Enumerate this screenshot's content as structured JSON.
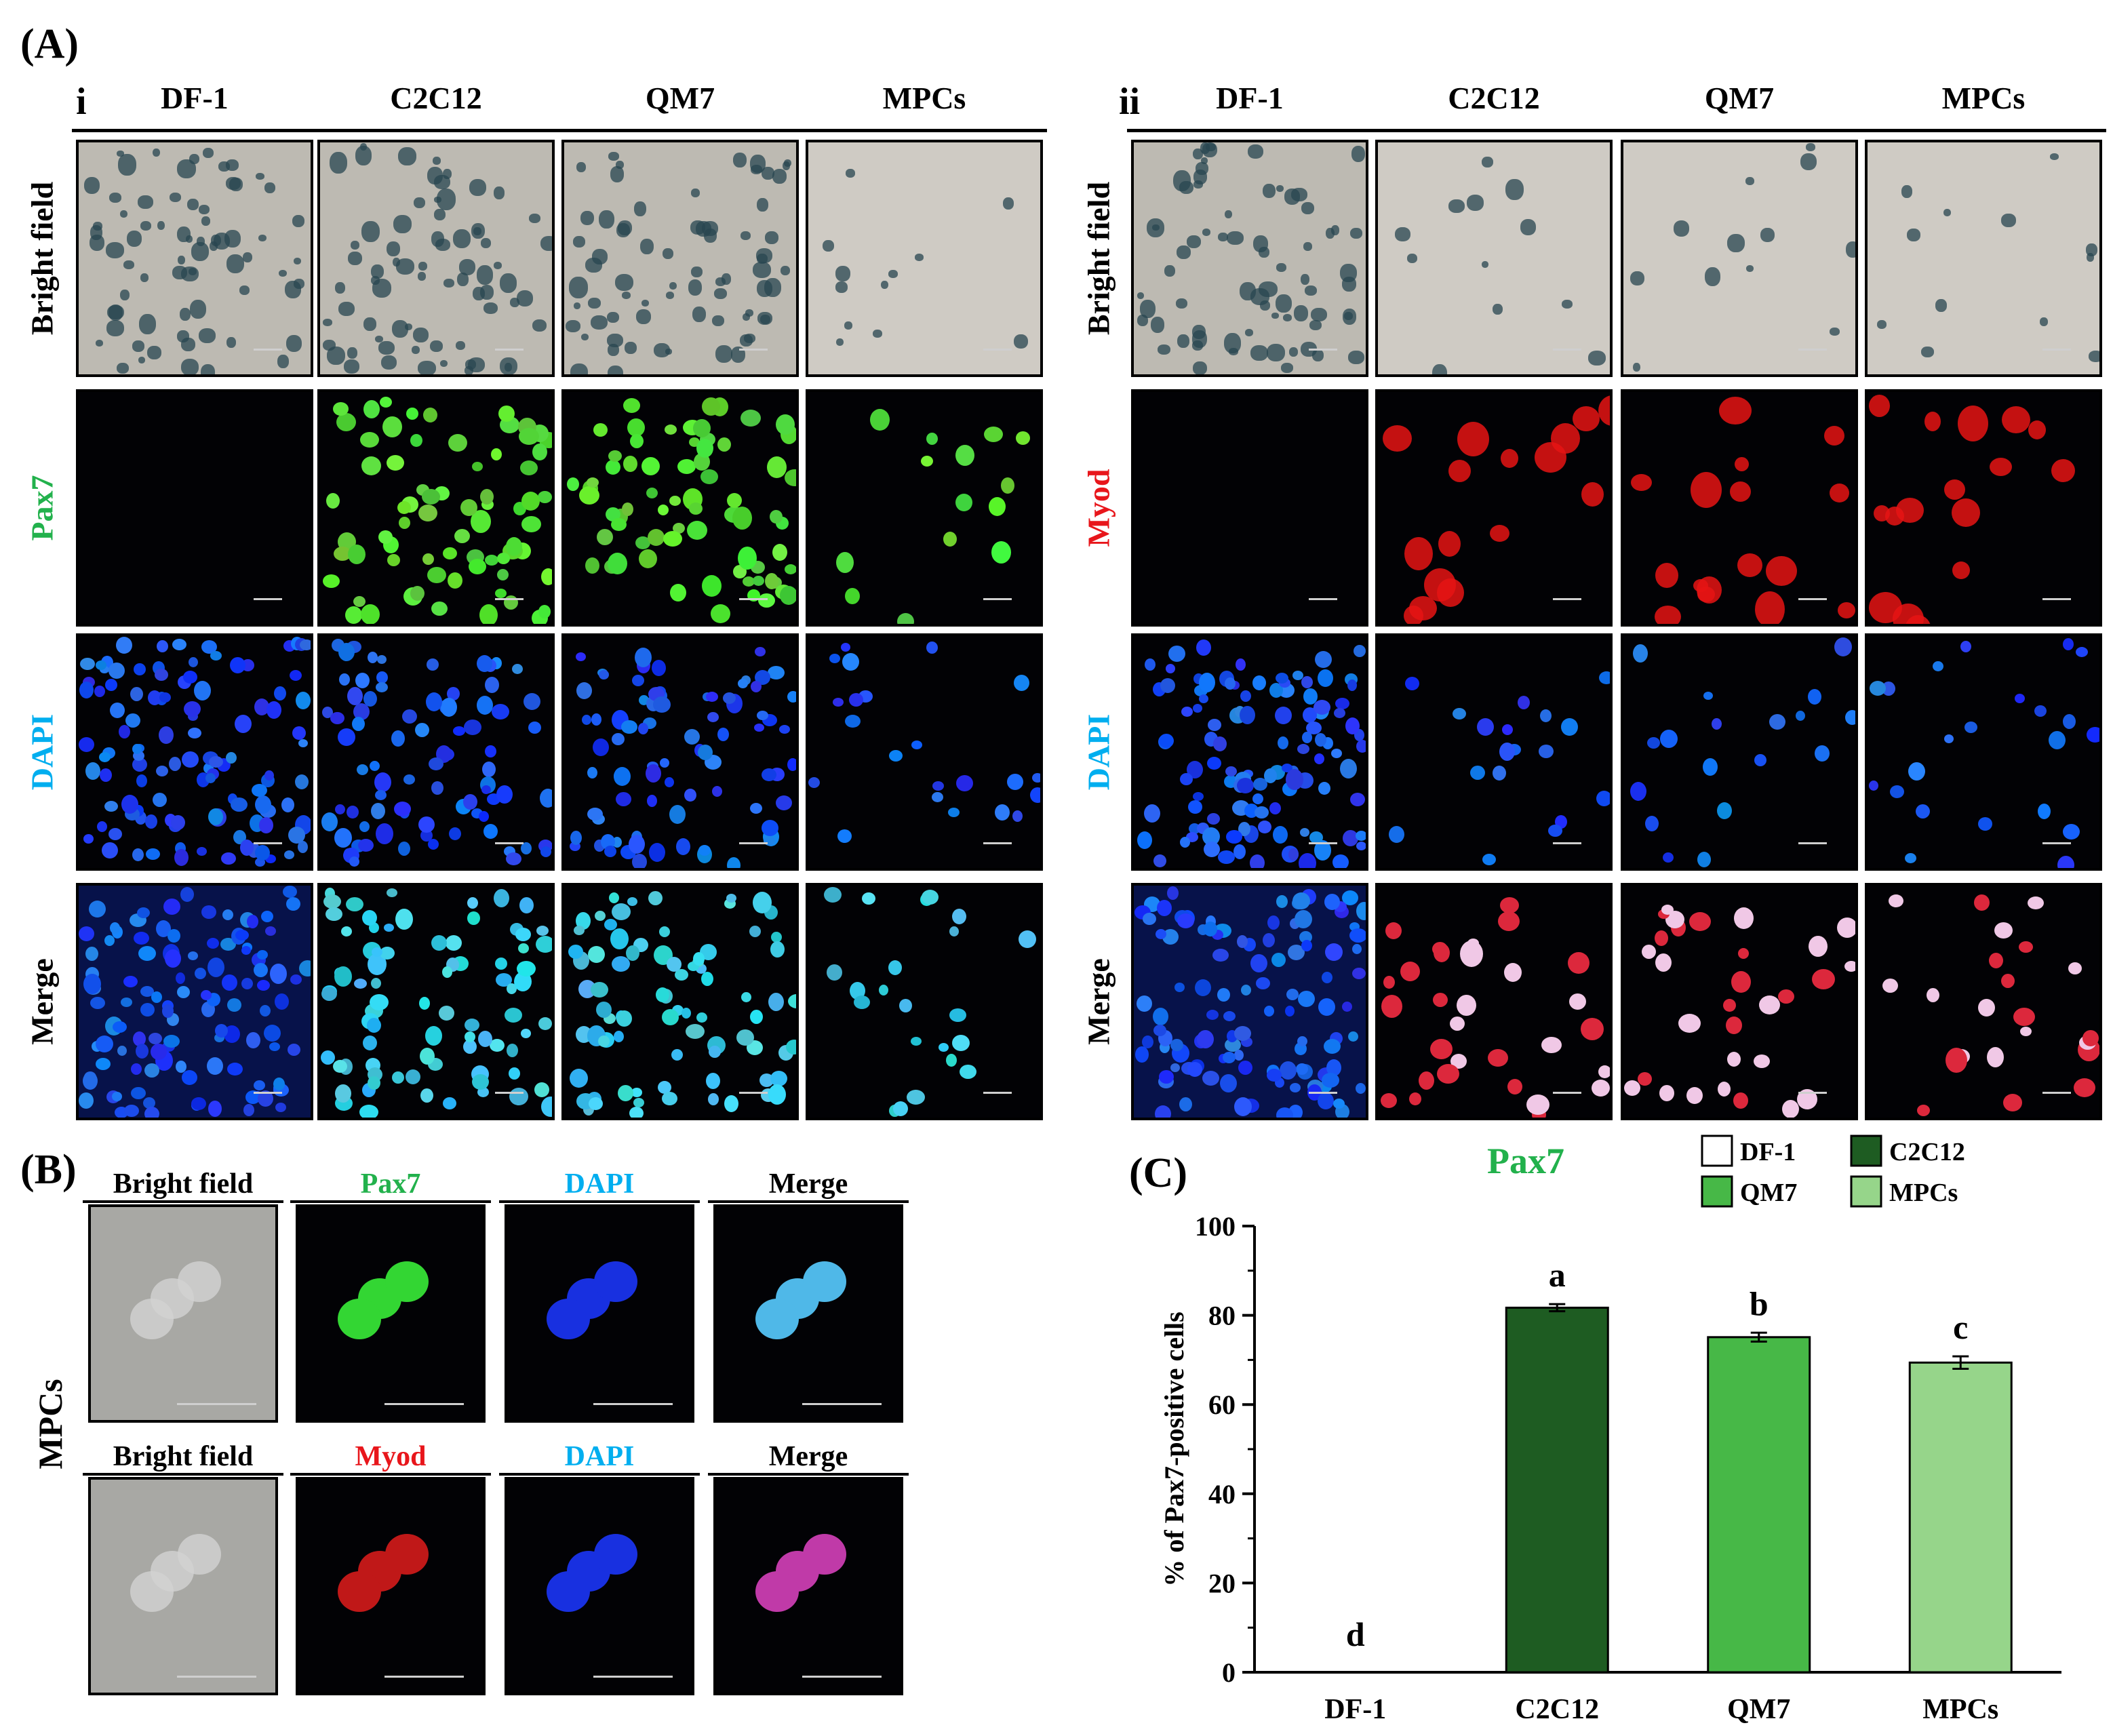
{
  "labels": {
    "panel_a": "(A)",
    "panel_b": "(B)",
    "panel_c": "(C)",
    "sub_i": "i",
    "sub_ii": "ii"
  },
  "panel_a_i": {
    "columns": [
      "DF-1",
      "C2C12",
      "QM7",
      "MPCs"
    ],
    "rows": [
      {
        "label": "Bright field",
        "color": "#000000"
      },
      {
        "label": "Pax7",
        "color": "#22b14c"
      },
      {
        "label": "DAPI",
        "color": "#00aeef"
      },
      {
        "label": "Merge",
        "color": "#000000"
      }
    ]
  },
  "panel_a_ii": {
    "columns": [
      "DF-1",
      "C2C12",
      "QM7",
      "MPCs"
    ],
    "rows": [
      {
        "label": "Bright field",
        "color": "#000000"
      },
      {
        "label": "Myod",
        "color": "#e8161b"
      },
      {
        "label": "DAPI",
        "color": "#00aeef"
      },
      {
        "label": "Merge",
        "color": "#000000"
      }
    ]
  },
  "panel_b": {
    "side_label": "MPCs",
    "row1": [
      {
        "label": "Bright field",
        "color": "#000000"
      },
      {
        "label": "Pax7",
        "color": "#22b14c"
      },
      {
        "label": "DAPI",
        "color": "#00aeef"
      },
      {
        "label": "Merge",
        "color": "#000000"
      }
    ],
    "row2": [
      {
        "label": "Bright field",
        "color": "#000000"
      },
      {
        "label": "Myod",
        "color": "#e8161b"
      },
      {
        "label": "DAPI",
        "color": "#00aeef"
      },
      {
        "label": "Merge",
        "color": "#000000"
      }
    ]
  },
  "chart_data": {
    "type": "bar",
    "title": "Pax7",
    "title_color": "#22b14c",
    "ylabel": "% of Pax7-positive cells",
    "xlabel": "",
    "categories": [
      "DF-1",
      "C2C12",
      "QM7",
      "MPCs"
    ],
    "values": [
      0,
      81.7,
      75.1,
      69.4
    ],
    "errors": [
      0,
      0.8,
      1.0,
      1.4
    ],
    "significance": [
      "d",
      "a",
      "b",
      "c"
    ],
    "colors": [
      "#ffffff",
      "#1e5c22",
      "#47b847",
      "#96d58a"
    ],
    "ylim": [
      0,
      100
    ],
    "yticks": [
      0,
      20,
      40,
      60,
      80,
      100
    ],
    "legend": [
      {
        "name": "DF-1",
        "color": "#ffffff"
      },
      {
        "name": "C2C12",
        "color": "#1e5c22"
      },
      {
        "name": "QM7",
        "color": "#47b847"
      },
      {
        "name": "MPCs",
        "color": "#96d58a"
      }
    ],
    "legend_position": "top-right",
    "grid": false
  }
}
